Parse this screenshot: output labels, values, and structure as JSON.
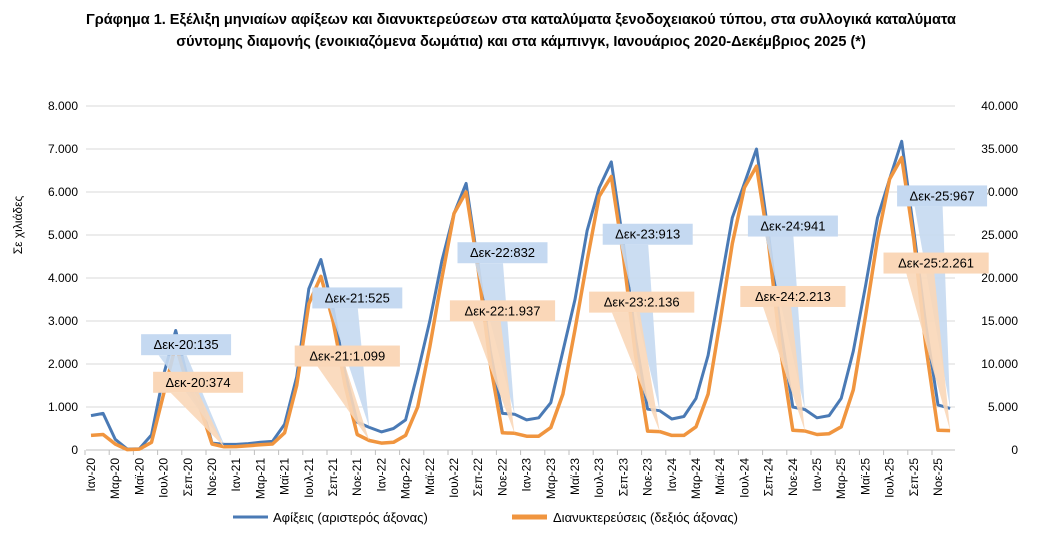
{
  "chart_data": {
    "type": "line",
    "title_line1": "Γράφημα 1. Εξέλιξη μηνιαίων αφίξεων και διανυκτερεύσεων στα καταλύματα ξενοδοχειακού τύπου, στα συλλογικά καταλύματα",
    "title_line2": "σύντομης διαμονής (ενοικιαζόμενα δωμάτια) και στα κάμπινγκ, Ιανουάριος 2020-Δεκέμβριος 2025 (*)",
    "ylabel": "Σε χιλιάδες",
    "ylim_left": [
      0,
      8000
    ],
    "ylim_right": [
      0,
      40000
    ],
    "yticks_left": [
      "0",
      "1.000",
      "2.000",
      "3.000",
      "4.000",
      "5.000",
      "6.000",
      "7.000",
      "8.000"
    ],
    "yticks_right": [
      "0",
      "5.000",
      "10.000",
      "15.000",
      "20.000",
      "25.000",
      "30.000",
      "35.000",
      "40.000"
    ],
    "grid": true,
    "legend_position": "bottom",
    "x_tick_labels": [
      "Ιαν-20",
      "Μαρ-20",
      "Μαϊ-20",
      "Ιουλ-20",
      "Σεπ-20",
      "Νοε-20",
      "Ιαν-21",
      "Μαρ-21",
      "Μαϊ-21",
      "Ιουλ-21",
      "Σεπ-21",
      "Νοε-21",
      "Ιαν-22",
      "Μαρ-22",
      "Μαϊ-22",
      "Ιουλ-22",
      "Σεπ-22",
      "Νοε-22",
      "Ιαν-23",
      "Μαρ-23",
      "Μαϊ-23",
      "Ιουλ-23",
      "Σεπ-23",
      "Νοε-23",
      "Ιαν-24",
      "Μαρ-24",
      "Μαϊ-24",
      "Ιουλ-24",
      "Σεπ-24",
      "Νοε-24",
      "Ιαν-25",
      "Μαρ-25",
      "Μαϊ-25",
      "Ιουλ-25",
      "Σεπ-25",
      "Νοε-25"
    ],
    "x_range": [
      "Ιαν-20",
      "Δεκ-25"
    ],
    "series": [
      {
        "name": "Αφίξεις (αριστερός άξονας)",
        "axis": "left",
        "color": "#4a7ab5",
        "values": [
          800,
          850,
          250,
          20,
          30,
          350,
          1750,
          2780,
          1650,
          1200,
          160,
          135,
          130,
          150,
          180,
          200,
          600,
          1700,
          3750,
          4430,
          3300,
          1800,
          650,
          525,
          420,
          500,
          700,
          1800,
          3000,
          4400,
          5500,
          6200,
          4300,
          2300,
          850,
          832,
          700,
          750,
          1100,
          2300,
          3500,
          5100,
          6100,
          6700,
          4800,
          2600,
          950,
          913,
          720,
          780,
          1200,
          2200,
          3800,
          5400,
          6200,
          7000,
          5000,
          2800,
          1000,
          941,
          750,
          800,
          1200,
          2300,
          3800,
          5400,
          6300,
          7180,
          5100,
          2900,
          1050,
          967
        ]
      },
      {
        "name": "Διανυκτερεύσεις (δεξιός άξονας)",
        "axis": "right",
        "color": "#f0953f",
        "values": [
          1700,
          1800,
          700,
          50,
          100,
          900,
          6500,
          12200,
          7500,
          5000,
          700,
          374,
          400,
          500,
          600,
          700,
          2000,
          7500,
          17000,
          20200,
          15000,
          7500,
          1800,
          1099,
          800,
          900,
          1700,
          5000,
          12000,
          20000,
          27500,
          30000,
          21000,
          10000,
          2000,
          1937,
          1600,
          1600,
          2600,
          6500,
          14000,
          22000,
          29500,
          31800,
          22500,
          11000,
          2200,
          2136,
          1700,
          1700,
          2700,
          6500,
          15000,
          24000,
          30500,
          33000,
          24000,
          11500,
          2300,
          2213,
          1800,
          1900,
          2700,
          7000,
          15500,
          24500,
          31500,
          34000,
          24500,
          12000,
          2300,
          2261
        ]
      }
    ],
    "annotations": [
      {
        "series": 0,
        "month_index": 11,
        "text": "Δεκ-20:135",
        "color": "#c5d9f1"
      },
      {
        "series": 1,
        "month_index": 11,
        "text": "Δεκ-20:374",
        "color": "#fad7b8"
      },
      {
        "series": 0,
        "month_index": 23,
        "text": "Δεκ-21:525",
        "color": "#c5d9f1"
      },
      {
        "series": 1,
        "month_index": 23,
        "text": "Δεκ-21:1.099",
        "color": "#fad7b8"
      },
      {
        "series": 0,
        "month_index": 35,
        "text": "Δεκ-22:832",
        "color": "#c5d9f1"
      },
      {
        "series": 1,
        "month_index": 35,
        "text": "Δεκ-22:1.937",
        "color": "#fad7b8"
      },
      {
        "series": 0,
        "month_index": 47,
        "text": "Δεκ-23:913",
        "color": "#c5d9f1"
      },
      {
        "series": 1,
        "month_index": 47,
        "text": "Δεκ-23:2.136",
        "color": "#fad7b8"
      },
      {
        "series": 0,
        "month_index": 59,
        "text": "Δεκ-24:941",
        "color": "#c5d9f1"
      },
      {
        "series": 1,
        "month_index": 59,
        "text": "Δεκ-24:2.213",
        "color": "#fad7b8"
      },
      {
        "series": 0,
        "month_index": 71,
        "text": "Δεκ-25:967",
        "color": "#c5d9f1"
      },
      {
        "series": 1,
        "month_index": 71,
        "text": "Δεκ-25:2.261",
        "color": "#fad7b8"
      }
    ]
  }
}
